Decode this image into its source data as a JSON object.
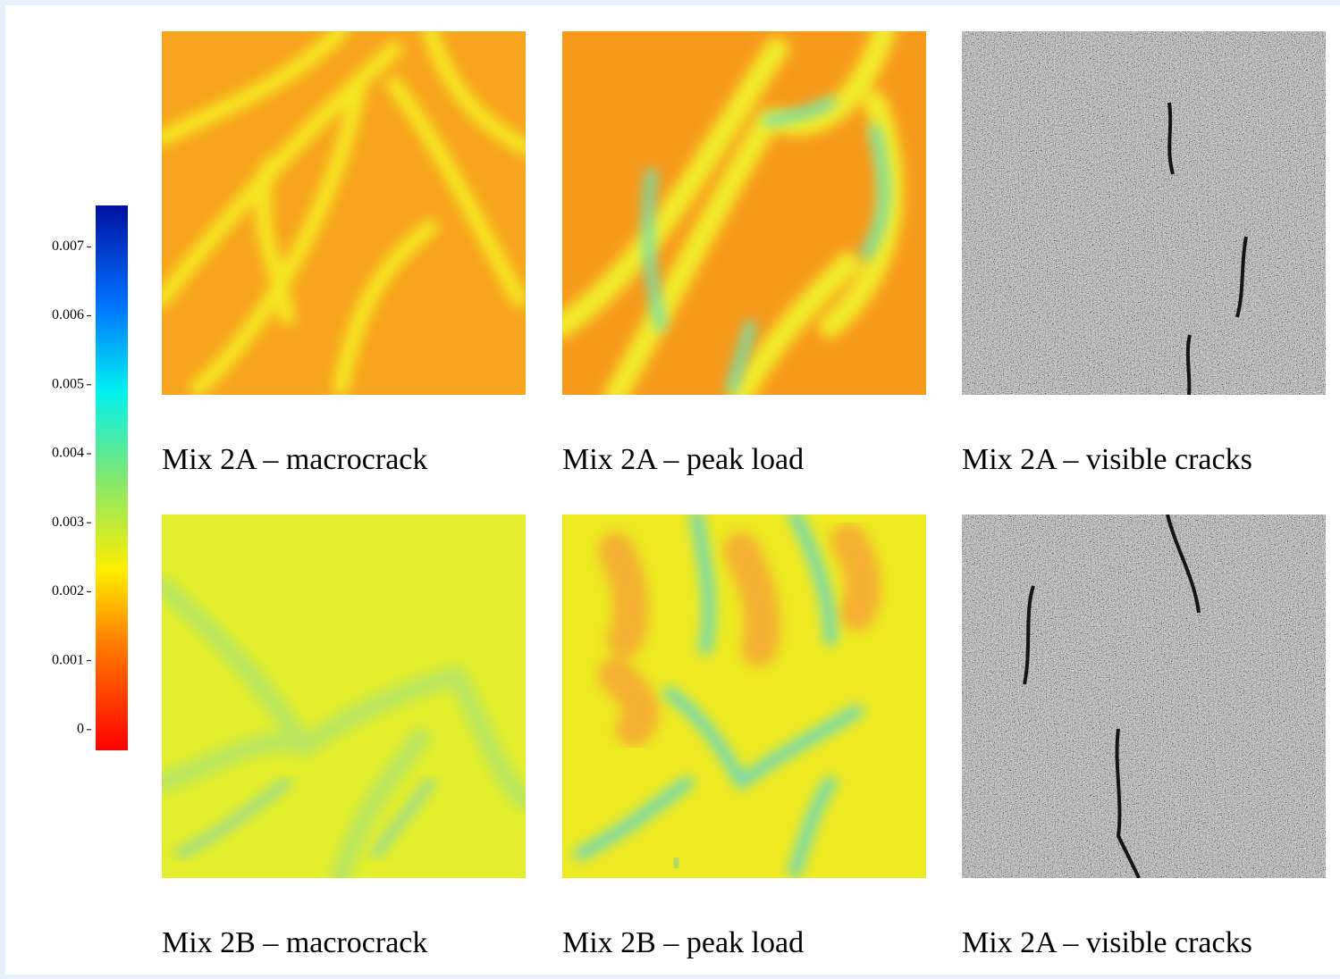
{
  "colorbar": {
    "lim": [
      -0.0003,
      0.0076
    ],
    "ticks": [
      0,
      0.001,
      0.002,
      0.003,
      0.004,
      0.005,
      0.006,
      0.007
    ]
  },
  "panels": [
    {
      "caption": "Mix 2A – macrocrack"
    },
    {
      "caption": "Mix 2A – peak load"
    },
    {
      "caption": "Mix 2A – visible cracks"
    },
    {
      "caption": "Mix 2B – macrocrack"
    },
    {
      "caption": "Mix 2B – peak load"
    },
    {
      "caption": "Mix 2A – visible cracks"
    }
  ]
}
